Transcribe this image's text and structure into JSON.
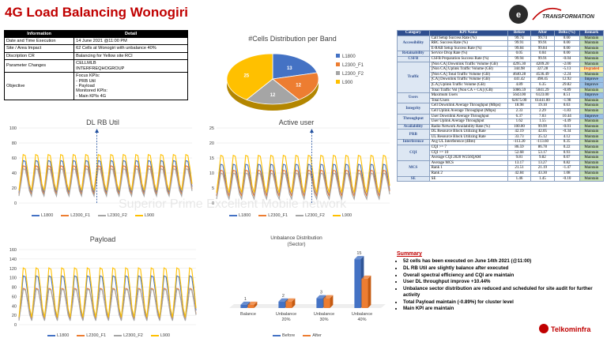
{
  "title": "4G Load Balancing Wonogiri",
  "logos": {
    "transformation": "TRANSFORMATION",
    "telkom": "Telkominfra"
  },
  "info_table": {
    "headers": [
      "Information",
      "Detail"
    ],
    "rows": [
      [
        "Date and Time Execution",
        "14 June 2021 @11:00 PM"
      ],
      [
        "Site / Area Impact",
        "62 Cells at Wonogiri with unbalance 40%"
      ],
      [
        "Discription CR",
        "Balancing for Yellow site RCI"
      ],
      [
        "Parameter Changes",
        "CELLMLB\nINTERFREQHOGROUP"
      ],
      [
        "Objective",
        "Focus KPIs:\n- PRB Util\n- Payload\nMonitored KPIs:\n- Main KPIs 4G"
      ]
    ]
  },
  "watermark": "Superior Prime Excellent Mobile network",
  "pie": {
    "title": "#Cells Distribution per Band",
    "labels": [
      "L1800",
      "L2300_F1",
      "L2300_F2",
      "L900"
    ],
    "values": [
      13,
      12,
      12,
      25
    ],
    "colors": [
      "#4472c4",
      "#ed7d31",
      "#a5a5a5",
      "#ffc000"
    ],
    "slice_labels": [
      "13",
      "12",
      "12",
      "25"
    ]
  },
  "dl_prb": {
    "title": "DL RB Util",
    "ymax": 100,
    "yticks": [
      "0",
      "20",
      "40",
      "60",
      "80",
      "100"
    ]
  },
  "active_user": {
    "title": "Active user",
    "ymax": 25,
    "yticks": [
      "0",
      "5",
      "10",
      "15",
      "20",
      "25"
    ]
  },
  "payload": {
    "title": "Payload",
    "ymax": 160,
    "yticks": [
      "0",
      "20",
      "40",
      "60",
      "80",
      "100",
      "120",
      "140",
      "160"
    ]
  },
  "line_legend": [
    "L1800",
    "L2300_F1",
    "L2300_F2",
    "L900"
  ],
  "line_colors": [
    "#4472c4",
    "#ed7d31",
    "#a5a5a5",
    "#ffc000"
  ],
  "unbalance": {
    "title": "Unbalance Distribution\n(Sector)",
    "categories": [
      "Balance",
      "Unbalance 20%",
      "Unbalance 30%",
      "Unbalance 40%"
    ],
    "series": [
      {
        "name": "Before",
        "values": [
          1,
          2,
          3,
          15
        ]
      },
      {
        "name": "After",
        "values": [
          1,
          2,
          3,
          9
        ]
      }
    ],
    "colors": [
      "#4472c4",
      "#ed7d31"
    ]
  },
  "kpi_table": {
    "headers": [
      "Category",
      "KPI Name",
      "Before",
      "After",
      "Delta (%)",
      "Remark"
    ],
    "rows": [
      {
        "cat": "Accessibility",
        "span": 3,
        "kpi": "Call Setup Success Rate (%)",
        "before": "99.74",
        "after": "99.74",
        "delta": "0.00",
        "remark": "Maintain"
      },
      {
        "kpi": "RRC Success Rate (%)",
        "before": "99.91",
        "after": "99.91",
        "delta": "0.00",
        "remark": "Maintain"
      },
      {
        "kpi": "E-RAB Setup Success Rate (%)",
        "before": "99.84",
        "after": "99.84",
        "delta": "0.00",
        "remark": "Maintain"
      },
      {
        "cat": "Retainability",
        "span": 1,
        "kpi": "Service Drop Rate (%)",
        "before": "0.05",
        "after": "0.04",
        "delta": "0.00",
        "remark": "Maintain"
      },
      {
        "cat": "CSFB",
        "span": 1,
        "kpi": "CSFB Preparation Success Rate (%)",
        "before": "99.94",
        "after": "99.91",
        "delta": "-0.04",
        "remark": "Maintain"
      },
      {
        "cat": "Traffic",
        "span": 6,
        "kpi": "[Non CA] Downlink Traffic Volume (GB)",
        "before": "4295.30",
        "after": "4209.20",
        "delta": "-2.00",
        "remark": "Maintain"
      },
      {
        "kpi": "[Non CA] Uplink Traffic Volume (GB)",
        "before": "344.98",
        "after": "327.28",
        "delta": "-5.13",
        "remark": "Degraded"
      },
      {
        "kpi": "[Non CA] Total Traffic Volume (GB)",
        "before": "4640.28",
        "after": "4536.49",
        "delta": "-2.24",
        "remark": "Maintain"
      },
      {
        "kpi": "[CA] Downlink Traffic Volume (GB)",
        "before": "441.42",
        "after": "498.45",
        "delta": "12.92",
        "remark": "Improve"
      },
      {
        "kpi": "[CA] Uplink Traffic Volume (GB)",
        "before": "4.89",
        "after": "6.35",
        "delta": "29.82",
        "remark": "Improve"
      },
      {
        "kpi": "Total Traffic Vol [Non CA + CA] (GB)",
        "before": "5086.59",
        "after": "5041.29",
        "delta": "-0.89",
        "remark": "Maintain"
      },
      {
        "cat": "Users",
        "span": 2,
        "kpi": "Maximum Users",
        "before": "5643.00",
        "after": "6123.00",
        "delta": "8.51",
        "remark": "Improve"
      },
      {
        "kpi": "Total Users",
        "before": "62675.00",
        "after": "61441.00",
        "delta": "-1.98",
        "remark": "Maintain"
      },
      {
        "cat": "Integrity",
        "span": 2,
        "kpi": "Cell Downlink Average Throughput (Mbps)",
        "before": "18.98",
        "after": "19.10",
        "delta": "0.63",
        "remark": "Maintain"
      },
      {
        "kpi": "Cell Uplink Average Throughput (Mbps)",
        "before": "2.33",
        "after": "2.29",
        "delta": "-1.83",
        "remark": "Maintain"
      },
      {
        "cat": "Throughput",
        "span": 2,
        "kpi": "User Downlink Average Throughput",
        "before": "6.37",
        "after": "7.03",
        "delta": "10.44",
        "remark": "Improve"
      },
      {
        "kpi": "User Uplink Average Throughput",
        "before": "1.62",
        "after": "1.55",
        "delta": "-4.49",
        "remark": "Maintain"
      },
      {
        "cat": "Availability",
        "span": 1,
        "kpi": "Radio Network Availability Rate (%)",
        "before": "100.00",
        "after": "99.99",
        "delta": "-0.01",
        "remark": "Maintain"
      },
      {
        "cat": "PRB",
        "span": 2,
        "kpi": "DL Resource Block Utilizing Rate",
        "before": "42.19",
        "after": "42.05",
        "delta": "-0.34",
        "remark": "Maintain"
      },
      {
        "kpi": "UL Resource Block Utilizing Rate",
        "before": "33.73",
        "after": "35.12",
        "delta": "4.12",
        "remark": "Maintain"
      },
      {
        "cat": "Interference",
        "span": 1,
        "kpi": "Avg UL Interference (dBm)",
        "before": "-113.20",
        "after": "-113.60",
        "delta": "0.35",
        "remark": "Maintain"
      },
      {
        "cat": "CQI",
        "span": 3,
        "kpi": "CQI >= 7",
        "before": "86.59",
        "after": "86.78",
        "delta": "0.22",
        "remark": "Maintain"
      },
      {
        "kpi": "CQI >= 10",
        "before": "52.68",
        "after": "53.17",
        "delta": "0.93",
        "remark": "Maintain"
      },
      {
        "kpi": "Average CQI 2020 W256QAM",
        "before": "9.81",
        "after": "9.82",
        "delta": "0.07",
        "remark": "Maintain"
      },
      {
        "cat": "MCS",
        "span": 3,
        "kpi": "Average MCS",
        "before": "13.17",
        "after": "13.27",
        "delta": "0.82",
        "remark": "Maintain"
      },
      {
        "kpi": "Rank 1",
        "before": "21.51",
        "after": "21.19",
        "delta": "-1.47",
        "remark": "Maintain"
      },
      {
        "kpi": "Rank 2",
        "before": "42.84",
        "after": "43.30",
        "delta": "1.08",
        "remark": "Maintain"
      },
      {
        "cat": "SE",
        "span": 1,
        "kpi": "SE",
        "before": "1.46",
        "after": "1.45",
        "delta": "-0.10",
        "remark": "Maintain"
      }
    ]
  },
  "summary": {
    "heading": "Summary",
    "items": [
      "52 cells has been executed on June 14th 2021 (@11:00)",
      "DL RB Util are slightly balance after executed",
      "Overall spectral efficiency and CQI are maintain",
      "User DL throughput improve +10.44%",
      "Unbalance sector distribution are reduced and scheduled for site audit for further activity",
      "Total Payload maintain (-0.89%) for cluster level",
      "Main KPI are maintain"
    ]
  }
}
